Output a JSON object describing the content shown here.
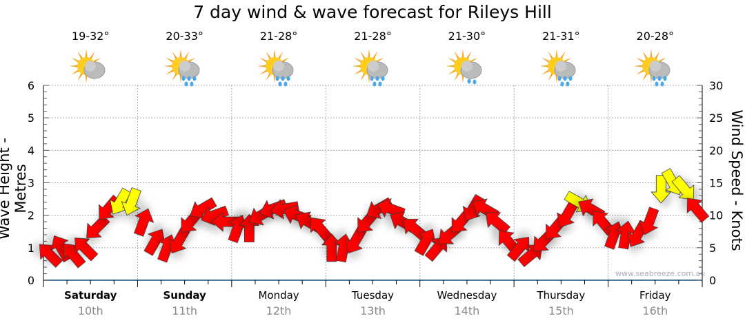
{
  "title": "7 day wind & wave forecast for Rileys Hill",
  "days": [
    {
      "name": "Saturday",
      "date": "10th",
      "temp": "19-32°",
      "icon": "sun-cloud-icon",
      "bold": true
    },
    {
      "name": "Sunday",
      "date": "11th",
      "temp": "20-33°",
      "icon": "sun-cloud-rain-icon",
      "bold": true
    },
    {
      "name": "Monday",
      "date": "12th",
      "temp": "21-28°",
      "icon": "sun-cloud-rain-icon",
      "bold": false
    },
    {
      "name": "Tuesday",
      "date": "13th",
      "temp": "21-28°",
      "icon": "sun-cloud-rain-icon",
      "bold": false
    },
    {
      "name": "Wednesday",
      "date": "14th",
      "temp": "21-30°",
      "icon": "sun-cloud-light-rain-icon",
      "bold": false
    },
    {
      "name": "Thursday",
      "date": "15th",
      "temp": "21-31°",
      "icon": "sun-cloud-rain-icon",
      "bold": false
    },
    {
      "name": "Friday",
      "date": "16th",
      "temp": "20-28°",
      "icon": "sun-cloud-rain-icon",
      "bold": false
    }
  ],
  "watermark": "www.seabreeze.com.au",
  "chart_data": {
    "type": "scatter",
    "title": "7 day wind & wave forecast for Rileys Hill",
    "ylabel": "Wave Height - Metres",
    "y2label": "Wind Speed - Knots",
    "ylim": [
      0,
      6
    ],
    "y2lim": [
      0,
      30
    ],
    "yticks": [
      "0",
      "1",
      "2",
      "3",
      "4",
      "5",
      "6"
    ],
    "y2ticks": [
      "0",
      "5",
      "10",
      "15",
      "20",
      "25",
      "30"
    ],
    "interval_hours": 3,
    "wind_knots": [
      4,
      5,
      4,
      5,
      8,
      11,
      12,
      12,
      9,
      6,
      5,
      6,
      9,
      11,
      10,
      9,
      8,
      8,
      10,
      11,
      11,
      10,
      9,
      8,
      5,
      5,
      6,
      9,
      11,
      11,
      9,
      8,
      6,
      5,
      7,
      9,
      11,
      11,
      9,
      6,
      5,
      4,
      6,
      8,
      10,
      12,
      11,
      9,
      7,
      7,
      7,
      9,
      14,
      15,
      14,
      11
    ],
    "wind_direction_deg": [
      135,
      150,
      140,
      135,
      45,
      40,
      30,
      20,
      200,
      210,
      200,
      30,
      40,
      60,
      70,
      90,
      200,
      180,
      60,
      70,
      80,
      110,
      120,
      140,
      180,
      190,
      30,
      40,
      60,
      110,
      120,
      130,
      210,
      220,
      50,
      40,
      30,
      120,
      130,
      140,
      220,
      230,
      45,
      40,
      30,
      300,
      120,
      140,
      200,
      190,
      30,
      20,
      0,
      330,
      320,
      140
    ],
    "colors": {
      "light": "#ff0000",
      "strong": "#ffff00"
    },
    "strong_threshold_knots": 12
  }
}
